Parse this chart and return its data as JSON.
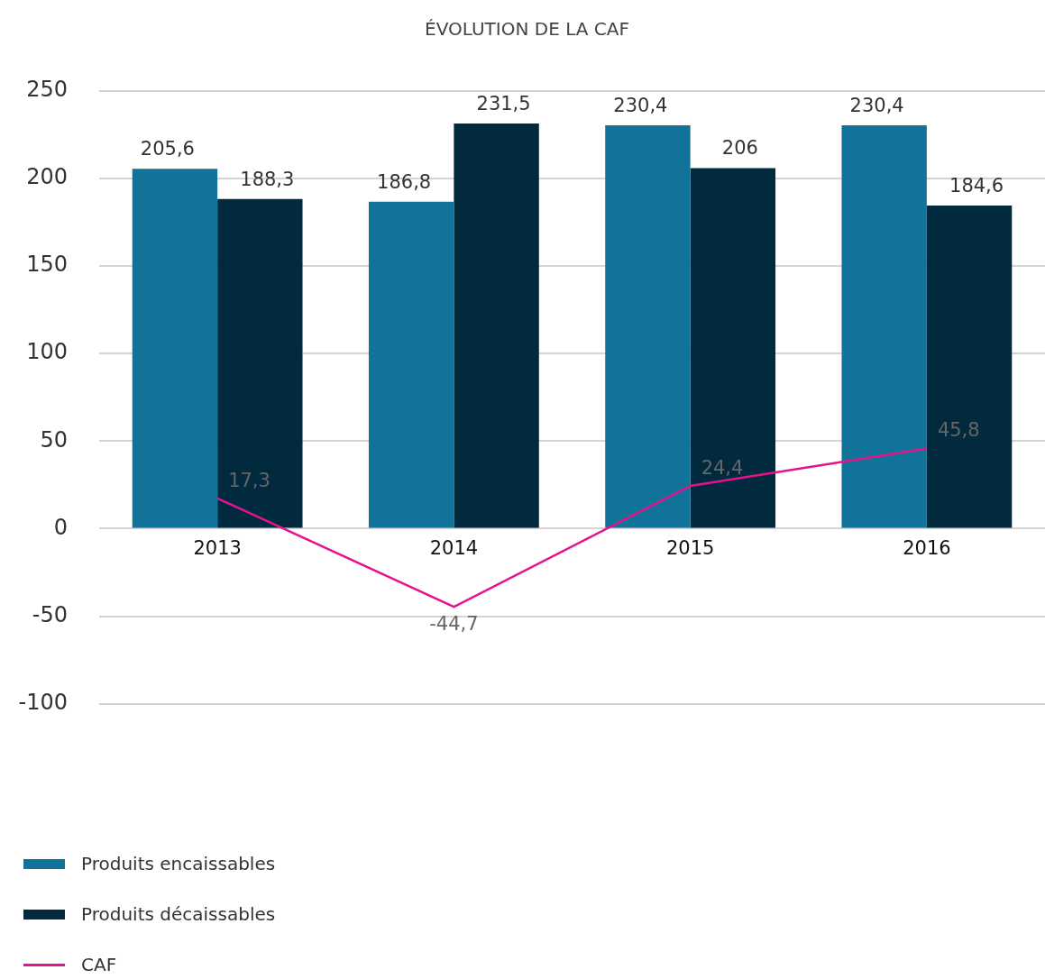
{
  "chart_data": {
    "type": "bar",
    "title": "ÉVOLUTION DE LA CAF",
    "categories": [
      "2013",
      "2014",
      "2015",
      "2016"
    ],
    "series": [
      {
        "name": "Produits encaissables",
        "color": "#117399",
        "values": [
          205.6,
          186.8,
          230.4,
          230.4
        ],
        "value_labels": [
          "205,6",
          "186,8",
          "230,4",
          "230,4"
        ]
      },
      {
        "name": "Produits décaissables",
        "color": "#022a3e",
        "values": [
          188.3,
          231.5,
          206,
          184.6
        ],
        "value_labels": [
          "188,3",
          "231,5",
          "206",
          "184,6"
        ]
      },
      {
        "name": "CAF",
        "type": "line",
        "color": "#e6128c",
        "values": [
          17.3,
          -44.7,
          24.4,
          45.8
        ],
        "value_labels": [
          "17,3",
          "-44,7",
          "24,4",
          "45,8"
        ]
      }
    ],
    "ylim": [
      -100,
      250
    ],
    "yticks": [
      -100,
      -50,
      0,
      50,
      100,
      150,
      200,
      250
    ],
    "grid": "y",
    "legend": "bottom left",
    "marker": "none"
  }
}
